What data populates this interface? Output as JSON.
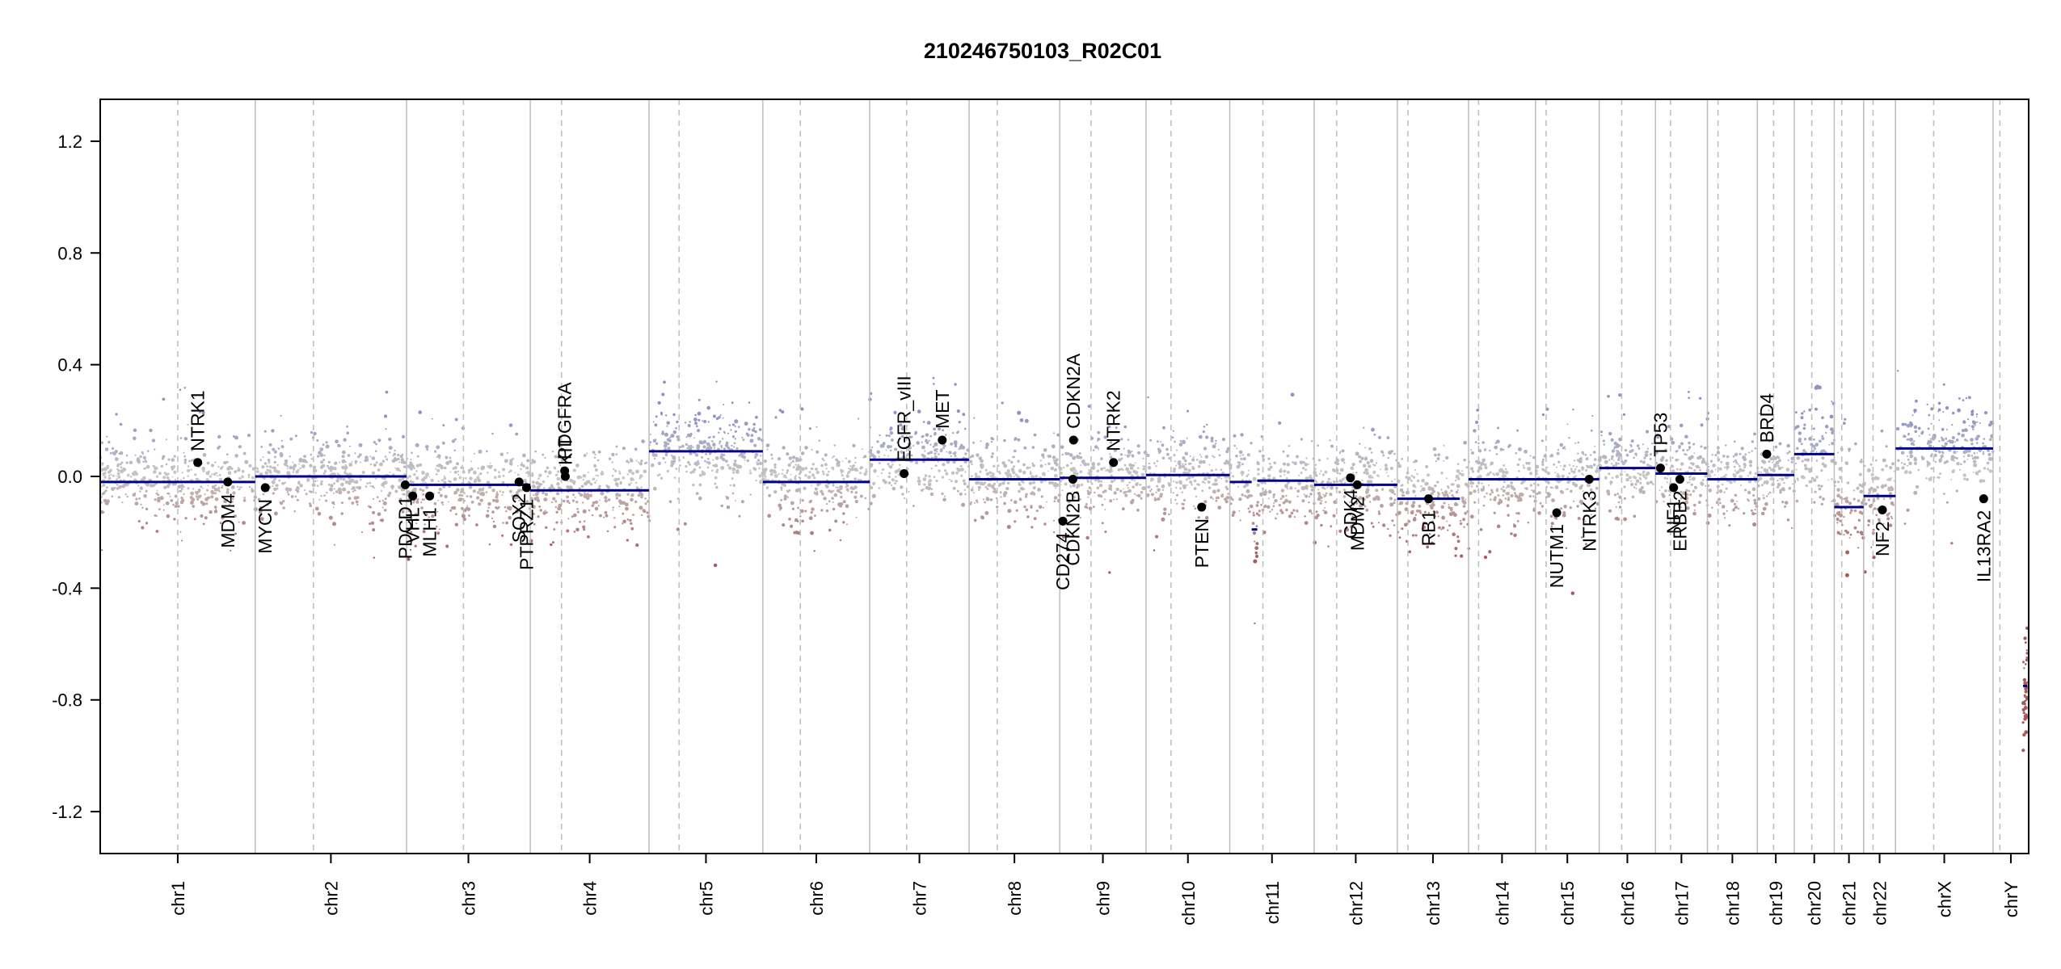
{
  "chart_data": {
    "type": "scatter",
    "title": "210246750103_R02C01",
    "xlabel": "",
    "ylabel": "",
    "ylim": [
      -1.35,
      1.35
    ],
    "yticks": [
      1.2,
      0.8,
      0.4,
      0.0,
      -0.4,
      -0.8,
      -1.2
    ],
    "ytick_labels": [
      "1.2",
      "0.8",
      "0.4",
      "0.0",
      "-0.4",
      "-0.8",
      "-1.2"
    ],
    "grid": false,
    "chromosomes": [
      {
        "name": "chr1",
        "start": 0,
        "end": 248,
        "centromere": 124,
        "segments": [
          {
            "from": 0,
            "to": 248,
            "value": -0.02
          }
        ],
        "spread": 0.07
      },
      {
        "name": "chr2",
        "start": 248,
        "end": 490,
        "centromere": 341,
        "segments": [
          {
            "from": 248,
            "to": 490,
            "value": 0.0
          }
        ],
        "spread": 0.07
      },
      {
        "name": "chr3",
        "start": 490,
        "end": 688,
        "centromere": 581,
        "segments": [
          {
            "from": 490,
            "to": 688,
            "value": -0.03
          }
        ],
        "spread": 0.07
      },
      {
        "name": "chr4",
        "start": 688,
        "end": 878,
        "centromere": 738,
        "segments": [
          {
            "from": 688,
            "to": 878,
            "value": -0.05
          }
        ],
        "spread": 0.07
      },
      {
        "name": "chr5",
        "start": 878,
        "end": 1060,
        "centromere": 926,
        "segments": [
          {
            "from": 878,
            "to": 1060,
            "value": 0.09
          }
        ],
        "spread": 0.07
      },
      {
        "name": "chr6",
        "start": 1060,
        "end": 1231,
        "centromere": 1120,
        "segments": [
          {
            "from": 1060,
            "to": 1231,
            "value": -0.02
          }
        ],
        "spread": 0.07
      },
      {
        "name": "chr7",
        "start": 1231,
        "end": 1390,
        "centromere": 1290,
        "segments": [
          {
            "from": 1231,
            "to": 1390,
            "value": 0.06
          }
        ],
        "spread": 0.07
      },
      {
        "name": "chr8",
        "start": 1390,
        "end": 1535,
        "centromere": 1435,
        "segments": [
          {
            "from": 1390,
            "to": 1535,
            "value": -0.01
          }
        ],
        "spread": 0.07
      },
      {
        "name": "chr9",
        "start": 1535,
        "end": 1673,
        "centromere": 1585,
        "segments": [
          {
            "from": 1535,
            "to": 1673,
            "value": -0.005
          }
        ],
        "spread": 0.07
      },
      {
        "name": "chr10",
        "start": 1673,
        "end": 1807,
        "centromere": 1713,
        "segments": [
          {
            "from": 1673,
            "to": 1807,
            "value": 0.005
          }
        ],
        "spread": 0.07
      },
      {
        "name": "chr11",
        "start": 1807,
        "end": 1942,
        "centromere": 1860,
        "segments": [
          {
            "from": 1807,
            "to": 1842,
            "value": -0.02
          },
          {
            "from": 1842,
            "to": 1851,
            "value": -0.19
          },
          {
            "from": 1851,
            "to": 1942,
            "value": -0.015
          }
        ],
        "spread": 0.07
      },
      {
        "name": "chr12",
        "start": 1942,
        "end": 2075,
        "centromere": 1978,
        "segments": [
          {
            "from": 1942,
            "to": 2075,
            "value": -0.03
          }
        ],
        "spread": 0.08
      },
      {
        "name": "chr13",
        "start": 2075,
        "end": 2189,
        "centromere": 2092,
        "segments": [
          {
            "from": 2075,
            "to": 2175,
            "value": -0.08
          }
        ],
        "spread": 0.08
      },
      {
        "name": "chr14",
        "start": 2189,
        "end": 2296,
        "centromere": 2205,
        "segments": [
          {
            "from": 2189,
            "to": 2296,
            "value": -0.01
          }
        ],
        "spread": 0.07
      },
      {
        "name": "chr15",
        "start": 2296,
        "end": 2398,
        "centromere": 2313,
        "segments": [
          {
            "from": 2296,
            "to": 2398,
            "value": -0.01
          }
        ],
        "spread": 0.07
      },
      {
        "name": "chr16",
        "start": 2398,
        "end": 2488,
        "centromere": 2434,
        "segments": [
          {
            "from": 2398,
            "to": 2488,
            "value": 0.03
          }
        ],
        "spread": 0.07
      },
      {
        "name": "chr17",
        "start": 2488,
        "end": 2571,
        "centromere": 2512,
        "segments": [
          {
            "from": 2488,
            "to": 2571,
            "value": 0.01
          }
        ],
        "spread": 0.07
      },
      {
        "name": "chr18",
        "start": 2571,
        "end": 2651,
        "centromere": 2588,
        "segments": [
          {
            "from": 2571,
            "to": 2651,
            "value": -0.01
          }
        ],
        "spread": 0.07
      },
      {
        "name": "chr19",
        "start": 2651,
        "end": 2710,
        "centromere": 2677,
        "segments": [
          {
            "from": 2651,
            "to": 2710,
            "value": 0.005
          }
        ],
        "spread": 0.07
      },
      {
        "name": "chr20",
        "start": 2710,
        "end": 2774,
        "centromere": 2738,
        "segments": [
          {
            "from": 2710,
            "to": 2774,
            "value": 0.08
          }
        ],
        "spread": 0.08
      },
      {
        "name": "chr21",
        "start": 2774,
        "end": 2821,
        "centromere": 2786,
        "segments": [
          {
            "from": 2774,
            "to": 2821,
            "value": -0.11
          }
        ],
        "spread": 0.1
      },
      {
        "name": "chr22",
        "start": 2821,
        "end": 2872,
        "centromere": 2836,
        "segments": [
          {
            "from": 2821,
            "to": 2872,
            "value": -0.07
          }
        ],
        "spread": 0.09
      },
      {
        "name": "chrX",
        "start": 2872,
        "end": 3028,
        "centromere": 2933,
        "segments": [
          {
            "from": 2872,
            "to": 3028,
            "value": 0.1
          }
        ],
        "spread": 0.07
      },
      {
        "name": "chrY",
        "start": 3028,
        "end": 3085,
        "centromere": 3039,
        "segments": [
          {
            "from": 3076,
            "to": 3083,
            "value": -0.75
          }
        ],
        "spread": 0.1
      }
    ],
    "genes": [
      {
        "name": "NTRK1",
        "pos": 156,
        "value": 0.05,
        "label_side": "up"
      },
      {
        "name": "MDM4",
        "pos": 204,
        "value": -0.02,
        "label_side": "down"
      },
      {
        "name": "MYCN",
        "pos": 264,
        "value": -0.04,
        "label_side": "down"
      },
      {
        "name": "PDCD1",
        "pos": 488,
        "value": -0.03,
        "label_side": "down"
      },
      {
        "name": "VHL",
        "pos": 500,
        "value": -0.07,
        "label_side": "down"
      },
      {
        "name": "MLH1",
        "pos": 527,
        "value": -0.07,
        "label_side": "down"
      },
      {
        "name": "SOX2",
        "pos": 670,
        "value": -0.02,
        "label_side": "down"
      },
      {
        "name": "PTPRZ1",
        "pos": 682,
        "value": -0.04,
        "label_side": "down"
      },
      {
        "name": "PDGFRA",
        "pos": 743,
        "value": 0.02,
        "label_side": "up"
      },
      {
        "name": "KIT",
        "pos": 744,
        "value": 0.0,
        "label_side": "up"
      },
      {
        "name": "EGFR_vIII",
        "pos": 1286,
        "value": 0.01,
        "label_side": "up"
      },
      {
        "name": "MET",
        "pos": 1347,
        "value": 0.13,
        "label_side": "up"
      },
      {
        "name": "CD274",
        "pos": 1540,
        "value": -0.16,
        "label_side": "down"
      },
      {
        "name": "CDKN2A",
        "pos": 1557,
        "value": 0.13,
        "label_side": "up"
      },
      {
        "name": "CDKN2B",
        "pos": 1556,
        "value": -0.01,
        "label_side": "down"
      },
      {
        "name": "NTRK2",
        "pos": 1621,
        "value": 0.05,
        "label_side": "up"
      },
      {
        "name": "PTEN",
        "pos": 1762,
        "value": -0.11,
        "label_side": "down"
      },
      {
        "name": "CDK4",
        "pos": 2000,
        "value": -0.005,
        "label_side": "down"
      },
      {
        "name": "MDM2",
        "pos": 2011,
        "value": -0.03,
        "label_side": "down"
      },
      {
        "name": "RB1",
        "pos": 2125,
        "value": -0.08,
        "label_side": "down"
      },
      {
        "name": "NUTM1",
        "pos": 2330,
        "value": -0.13,
        "label_side": "down"
      },
      {
        "name": "NTRK3",
        "pos": 2382,
        "value": -0.01,
        "label_side": "down"
      },
      {
        "name": "TP53",
        "pos": 2496,
        "value": 0.03,
        "label_side": "up"
      },
      {
        "name": "NF1",
        "pos": 2517,
        "value": -0.04,
        "label_side": "down"
      },
      {
        "name": "ERBB2",
        "pos": 2527,
        "value": -0.01,
        "label_side": "down"
      },
      {
        "name": "BRD4",
        "pos": 2666,
        "value": 0.08,
        "label_side": "up"
      },
      {
        "name": "NF2",
        "pos": 2851,
        "value": -0.12,
        "label_side": "down"
      },
      {
        "name": "IL13RA2",
        "pos": 3013,
        "value": -0.08,
        "label_side": "down"
      }
    ],
    "colors": {
      "segment": "#00008b",
      "gain": "#8f93c3",
      "loss": "#a8585a",
      "neutral": "#c6c6c6",
      "gene_point": "#000000",
      "chr_divider": "#bdbdbd",
      "centromere": "#bdbdbd"
    }
  }
}
